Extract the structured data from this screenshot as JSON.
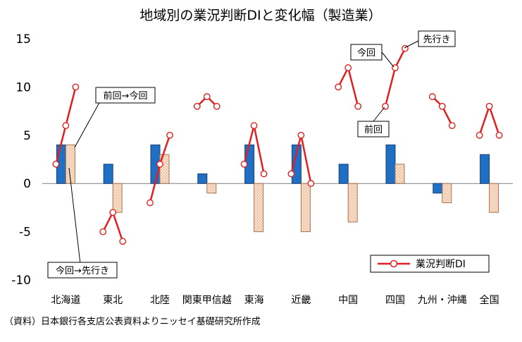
{
  "chart_data": {
    "type": "bar",
    "title": "地域別の業況判断DIと変化幅（製造業）",
    "categories": [
      "北海道",
      "東北",
      "北陸",
      "関東甲信越",
      "東海",
      "近畿",
      "中国",
      "四国",
      "九州・沖縄",
      "全国"
    ],
    "ylim": [
      -10,
      15
    ],
    "yticks": [
      15,
      10,
      5,
      0,
      -5,
      -10
    ],
    "grid": false,
    "series": [
      {
        "key": "change_prev_to_now",
        "values": [
          4,
          2,
          4,
          1,
          4,
          4,
          2,
          4,
          -1,
          3
        ],
        "color": "#1f6fc4"
      },
      {
        "key": "change_now_to_next",
        "values": [
          4,
          -3,
          3,
          -1,
          -5,
          -5,
          -4,
          2,
          -2,
          -3
        ],
        "color": "#f6c9a6"
      },
      {
        "name": "業況判断DI",
        "type": "line",
        "points_per_category": [
          "前回",
          "今回",
          "先行き"
        ],
        "values": [
          [
            2,
            6,
            10
          ],
          [
            -5,
            -3,
            -6
          ],
          [
            -2,
            2,
            5
          ],
          [
            8,
            9,
            8
          ],
          [
            2,
            6,
            1
          ],
          [
            1,
            5,
            0
          ],
          [
            10,
            12,
            8
          ],
          [
            8,
            12,
            14
          ],
          [
            9,
            8,
            6
          ],
          [
            5,
            8,
            5
          ]
        ],
        "color": "#e02020"
      }
    ],
    "legend": {
      "position": "bottom-right",
      "label": "業況判断DI"
    },
    "annotations": {
      "prev_to_now": "前回→今回",
      "now_to_next": "今回→先行き",
      "prev": "前回",
      "now": "今回",
      "next": "先行き"
    },
    "source_note": "（資料）日本銀行各支店公表資料よりニッセイ基礎研究所作成"
  },
  "colors": {
    "bar_blue": "#1f6fc4",
    "bar_hatch": "#f6c9a6",
    "line_red": "#e02020"
  }
}
